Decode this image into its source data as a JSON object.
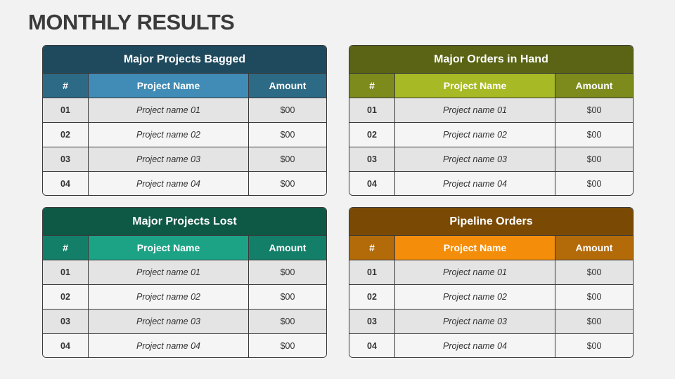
{
  "title": "MONTHLY RESULTS",
  "tables": [
    {
      "title": "Major Projects Bagged",
      "columns": [
        "#",
        "Project Name",
        "Amount"
      ],
      "rows": [
        [
          "01",
          "Project name 01",
          "$00"
        ],
        [
          "02",
          "Project name 02",
          "$00"
        ],
        [
          "03",
          "Project name 03",
          "$00"
        ],
        [
          "04",
          "Project name 04",
          "$00"
        ]
      ]
    },
    {
      "title": "Major Orders in Hand",
      "columns": [
        "#",
        "Project Name",
        "Amount"
      ],
      "rows": [
        [
          "01",
          "Project name 01",
          "$00"
        ],
        [
          "02",
          "Project name 02",
          "$00"
        ],
        [
          "03",
          "Project name 03",
          "$00"
        ],
        [
          "04",
          "Project name 04",
          "$00"
        ]
      ]
    },
    {
      "title": "Major Projects Lost",
      "columns": [
        "#",
        "Project Name",
        "Amount"
      ],
      "rows": [
        [
          "01",
          "Project name 01",
          "$00"
        ],
        [
          "02",
          "Project name 02",
          "$00"
        ],
        [
          "03",
          "Project name 03",
          "$00"
        ],
        [
          "04",
          "Project name 04",
          "$00"
        ]
      ]
    },
    {
      "title": "Pipeline Orders",
      "columns": [
        "#",
        "Project Name",
        "Amount"
      ],
      "rows": [
        [
          "01",
          "Project name 01",
          "$00"
        ],
        [
          "02",
          "Project name 02",
          "$00"
        ],
        [
          "03",
          "Project name 03",
          "$00"
        ],
        [
          "04",
          "Project name 04",
          "$00"
        ]
      ]
    }
  ]
}
